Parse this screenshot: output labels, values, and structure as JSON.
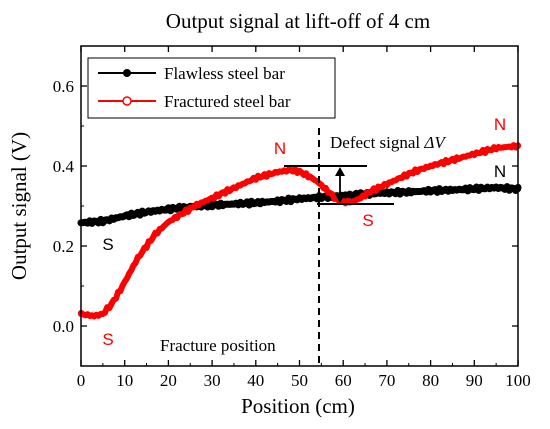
{
  "chart_data": {
    "type": "line",
    "title": "Output signal at lift-off of 4 cm",
    "xlabel": "Position (cm)",
    "ylabel": "Output signal (V)",
    "xlim": [
      0,
      100
    ],
    "ylim": [
      -0.1,
      0.7
    ],
    "x_ticks": [
      "0",
      "10",
      "20",
      "30",
      "40",
      "50",
      "60",
      "70",
      "80",
      "90",
      "100"
    ],
    "y_ticks": [
      "0.0",
      "0.2",
      "0.4",
      "0.6"
    ],
    "legend_position": "top-left",
    "series": [
      {
        "name": "Flawless steel bar",
        "color": "#000000",
        "marker": "filled-circle",
        "x": [
          0,
          5,
          10,
          15,
          20,
          25,
          30,
          35,
          40,
          45,
          50,
          55,
          60,
          65,
          70,
          75,
          80,
          85,
          90,
          95,
          100
        ],
        "y": [
          0.258,
          0.262,
          0.275,
          0.285,
          0.292,
          0.298,
          0.302,
          0.305,
          0.308,
          0.312,
          0.318,
          0.322,
          0.326,
          0.33,
          0.333,
          0.335,
          0.338,
          0.34,
          0.343,
          0.346,
          0.342
        ]
      },
      {
        "name": "Fractured steel bar",
        "color": "#ff0000",
        "marker": "open-circle",
        "x": [
          0,
          3,
          5,
          7,
          9,
          11,
          13,
          15,
          17,
          20,
          23,
          26,
          30,
          35,
          40,
          45,
          48,
          50,
          52,
          54,
          56,
          58,
          60,
          62,
          64,
          66,
          68,
          70,
          73,
          76,
          80,
          85,
          90,
          95,
          100
        ],
        "y": [
          0.03,
          0.025,
          0.03,
          0.055,
          0.09,
          0.13,
          0.17,
          0.2,
          0.23,
          0.26,
          0.28,
          0.3,
          0.32,
          0.345,
          0.37,
          0.385,
          0.39,
          0.386,
          0.375,
          0.362,
          0.342,
          0.322,
          0.31,
          0.31,
          0.32,
          0.335,
          0.345,
          0.355,
          0.37,
          0.385,
          0.4,
          0.415,
          0.43,
          0.445,
          0.45
        ]
      }
    ],
    "annotations": {
      "defect_label": "Defect signal ",
      "defect_symbol": "ΔV",
      "fracture_label": "Fracture position",
      "fracture_x": 55,
      "n_red": "N",
      "n_red_2": "N",
      "n_black": "N",
      "s_black": "S",
      "s_red": "S",
      "s_red_2": "S"
    },
    "colors": {
      "flawless": "#000000",
      "fractured": "#ff0000"
    }
  }
}
